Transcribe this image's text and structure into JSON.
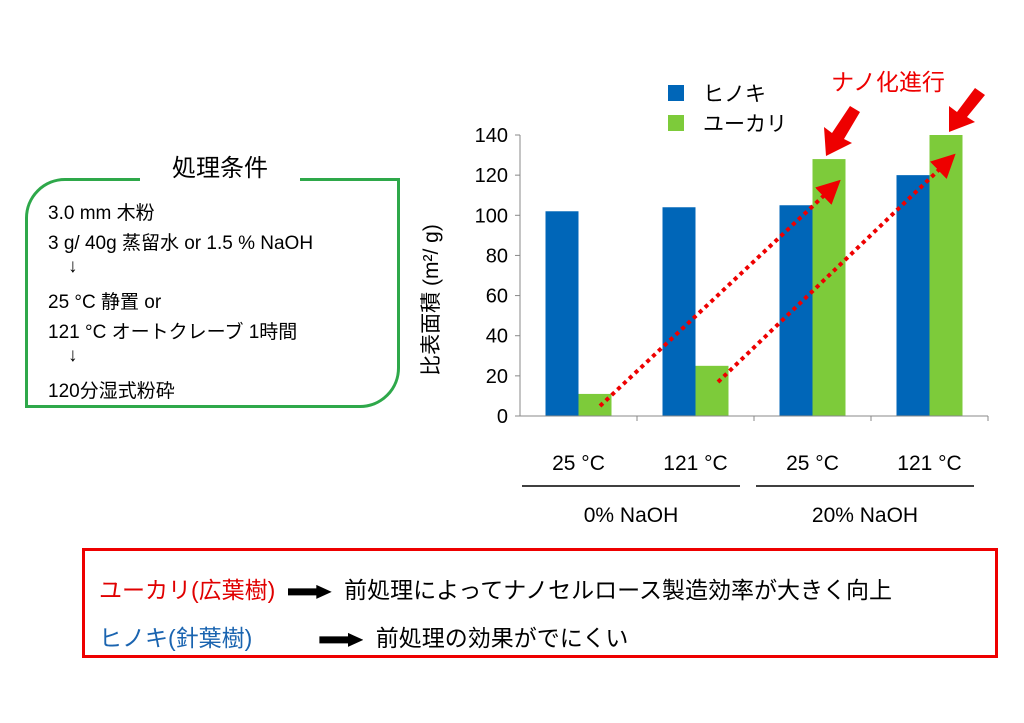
{
  "conditions": {
    "title": "処理条件",
    "lines": [
      "3.0 mm 木粉",
      "3 g/ 40g 蒸留水 or 1.5 % NaOH",
      "↓",
      "25 °C 静置 or",
      "121 °C オートクレーブ 1時間",
      "↓",
      "120分湿式粉砕"
    ]
  },
  "chart_data": {
    "type": "bar",
    "ylabel": "比表面積 (m²/ g)",
    "ylim": [
      0,
      140
    ],
    "yticks": [
      "0",
      "20",
      "40",
      "60",
      "80",
      "100",
      "120",
      "140"
    ],
    "categories": [
      "25 °C",
      "121 °C",
      "25 °C",
      "121 °C"
    ],
    "groups": [
      {
        "label": "0% NaOH"
      },
      {
        "label": "20% NaOH"
      }
    ],
    "series": [
      {
        "name": "ヒノキ",
        "color": "#0066b8",
        "values": [
          102,
          104,
          105,
          120
        ]
      },
      {
        "name": "ユーカリ",
        "color": "#7dcb3a",
        "values": [
          11,
          25,
          128,
          140
        ]
      }
    ],
    "legend": "top",
    "grid": false,
    "annotation": "ナノ化進行",
    "annotation_color": "#ee0000"
  },
  "summary": {
    "rows": [
      {
        "label": "ユーカリ(広葉樹)",
        "color": "#e00000",
        "text": "前処理によってナノセルロース製造効率が大きく向上"
      },
      {
        "label": "ヒノキ(針葉樹)",
        "color": "#1a64b0",
        "text": "前処理の効果がでにくい"
      }
    ],
    "arrow_icon": "right-arrow-icon"
  }
}
